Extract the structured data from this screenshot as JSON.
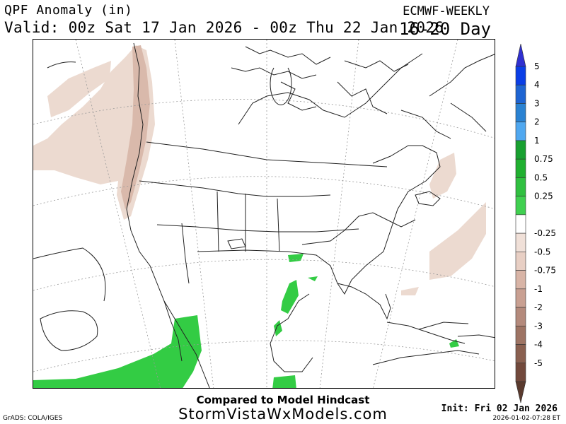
{
  "header": {
    "title": "QPF Anomaly (in)",
    "valid": "Valid: 00z Sat 17 Jan 2026 - 00z Thu 22 Jan 2026",
    "model": "ECMWF-WEEKLY",
    "range": "16-20 Day"
  },
  "footer": {
    "subtitle": "Compared to Model Hindcast",
    "site": "StormVistaWxModels.com",
    "credit": "GrADS: COLA/IGES",
    "init": "Init: Fri 02 Jan 2026",
    "generated": "2026-01-02-07:28 ET"
  },
  "colorbar": {
    "labels": [
      "5",
      "4",
      "3",
      "2",
      "1",
      "0.75",
      "0.5",
      "0.25",
      "-0.25",
      "-0.5",
      "-0.75",
      "-1",
      "-2",
      "-3",
      "-4",
      "-5"
    ],
    "colors": [
      "#3030d0",
      "#0a3ee6",
      "#1e64d2",
      "#2a82d2",
      "#50a8f0",
      "#18a030",
      "#20b030",
      "#30c040",
      "#40d050",
      "#ffffff",
      "#f0e0d8",
      "#e8cfc4",
      "#d8b4a6",
      "#c9a092",
      "#b48a7c",
      "#9e7464",
      "#8a6050",
      "#72493c",
      "#5a3a2e"
    ]
  },
  "map": {
    "fields": [
      {
        "name": "pacific-northwest-dry-anomaly",
        "level": "-0.5"
      },
      {
        "name": "west-coast-core-dry-anomaly",
        "level": "-0.75"
      },
      {
        "name": "atlantic-dry-anomaly",
        "level": "-0.5"
      },
      {
        "name": "gulf-coast-wet-anomaly",
        "level": "0.25"
      },
      {
        "name": "eastern-pacific-wet-anomaly",
        "level": "0.25"
      }
    ]
  }
}
